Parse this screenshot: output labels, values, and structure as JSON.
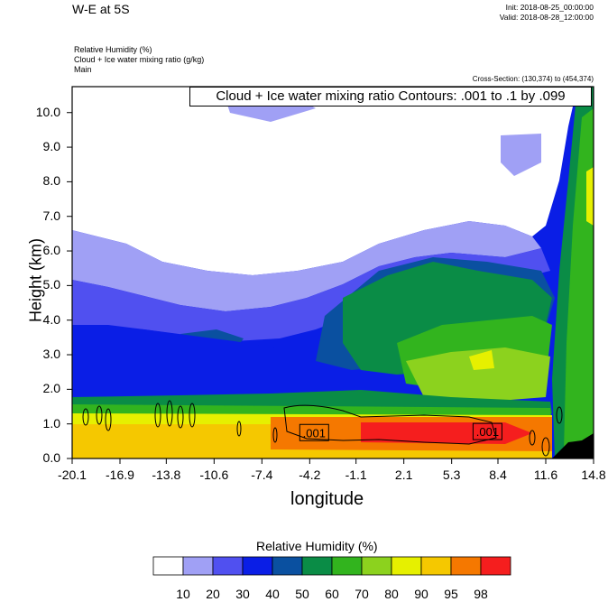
{
  "header": {
    "title": "W-E at 5S",
    "init": "Init: 2018-08-25_00:00:00",
    "valid": "Valid: 2018-08-28_12:00:00",
    "var_lines": [
      "Relative Humidity   (%)",
      "Cloud + Ice water mixing ratio   (g/kg)",
      "Main"
    ],
    "cross_section": "Cross-Section: (130,374) to (454,374)",
    "contour_note": "Cloud + Ice water mixing ratio Contours: .001 to .1 by .099"
  },
  "chart_data": {
    "type": "heatmap",
    "title": "W-E at 5S",
    "xlabel": "longitude",
    "ylabel": "Height (km)",
    "xlim": [
      -20.1,
      14.8
    ],
    "ylim": [
      0,
      10.75
    ],
    "x_ticks": [
      "-20.1",
      "-16.9",
      "-13.8",
      "-10.6",
      "-7.4",
      "-4.2",
      "-1.1",
      "2.1",
      "5.3",
      "8.4",
      "11.6",
      "14.8"
    ],
    "y_ticks": [
      "0.0",
      "1.0",
      "2.0",
      "3.0",
      "4.0",
      "5.0",
      "6.0",
      "7.0",
      "8.0",
      "9.0",
      "10.0"
    ],
    "y_tick_values": [
      0,
      1,
      2,
      3,
      4,
      5,
      6,
      7,
      8,
      9,
      10
    ],
    "contour_labels": [
      ".001",
      ".001"
    ],
    "contour_label_positions": [
      [
        -3.9,
        0.75
      ],
      [
        7.7,
        0.78
      ]
    ],
    "colorbar": {
      "title": "Relative Humidity  (%)",
      "levels": [
        "10",
        "20",
        "30",
        "40",
        "50",
        "60",
        "70",
        "80",
        "90",
        "95",
        "98"
      ],
      "colors": [
        "#ffffff",
        "#a0a0f5",
        "#5050f0",
        "#0a1ee6",
        "#0a50a0",
        "#0a8c46",
        "#32b41e",
        "#8cd21e",
        "#e6f000",
        "#f5c800",
        "#f57800",
        "#f51e1e"
      ]
    }
  }
}
